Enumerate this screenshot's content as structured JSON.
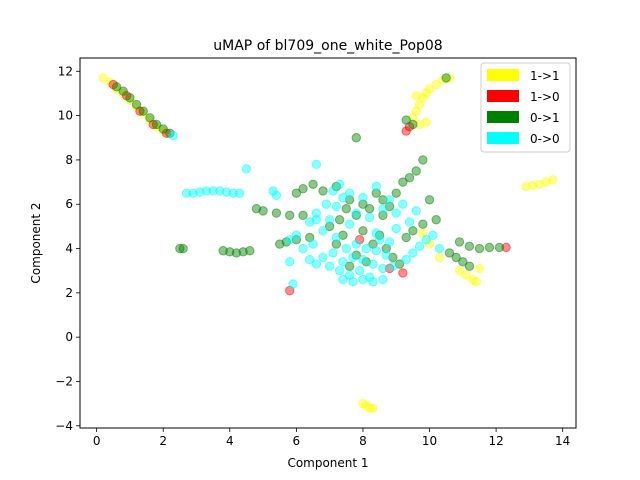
{
  "chart_data": {
    "type": "scatter",
    "title": "uMAP of bl709_one_white_Pop08",
    "xlabel": "Component 1",
    "ylabel": "Component 2",
    "xlim": [
      -0.5,
      14.4
    ],
    "ylim": [
      -4.1,
      12.6
    ],
    "xticks": [
      0,
      2,
      4,
      6,
      8,
      10,
      12,
      14
    ],
    "xtick_labels": [
      "0",
      "2",
      "4",
      "6",
      "8",
      "10",
      "12",
      "14"
    ],
    "yticks": [
      -4,
      -2,
      0,
      2,
      4,
      6,
      8,
      10,
      12
    ],
    "ytick_labels": [
      "−4",
      "−2",
      "0",
      "2",
      "4",
      "6",
      "8",
      "10",
      "12"
    ],
    "grid": false,
    "legend_position": "upper right",
    "series": [
      {
        "name": "1->1",
        "color": "#ffff00",
        "points": [
          [
            0.2,
            11.7
          ],
          [
            0.4,
            11.5
          ],
          [
            0.6,
            11.2
          ],
          [
            0.8,
            11.0
          ],
          [
            1.0,
            10.7
          ],
          [
            1.2,
            10.4
          ],
          [
            1.4,
            10.1
          ],
          [
            1.6,
            9.8
          ],
          [
            1.8,
            9.5
          ],
          [
            2.0,
            9.3
          ],
          [
            9.6,
            10.2
          ],
          [
            9.7,
            10.5
          ],
          [
            9.8,
            10.8
          ],
          [
            9.9,
            11.0
          ],
          [
            10.0,
            11.2
          ],
          [
            10.2,
            11.4
          ],
          [
            10.4,
            11.6
          ],
          [
            10.6,
            11.7
          ],
          [
            9.5,
            9.9
          ],
          [
            9.7,
            9.6
          ],
          [
            9.9,
            9.7
          ],
          [
            9.6,
            10.9
          ],
          [
            12.9,
            6.8
          ],
          [
            13.1,
            6.85
          ],
          [
            13.3,
            6.9
          ],
          [
            13.5,
            7.0
          ],
          [
            13.7,
            7.1
          ],
          [
            10.9,
            3.0
          ],
          [
            11.1,
            2.8
          ],
          [
            11.3,
            2.6
          ],
          [
            11.4,
            2.5
          ],
          [
            11.5,
            3.1
          ],
          [
            8.0,
            -3.0
          ],
          [
            8.1,
            -3.1
          ],
          [
            8.2,
            -3.2
          ],
          [
            8.3,
            -3.2
          ],
          [
            10.0,
            4.2
          ],
          [
            9.8,
            4.7
          ],
          [
            10.3,
            3.6
          ]
        ]
      },
      {
        "name": "1->0",
        "color": "#ff0000",
        "points": [
          [
            0.5,
            11.4
          ],
          [
            0.9,
            10.9
          ],
          [
            1.3,
            10.2
          ],
          [
            1.7,
            9.6
          ],
          [
            2.1,
            9.2
          ],
          [
            9.3,
            9.3
          ],
          [
            9.4,
            9.5
          ],
          [
            9.2,
            2.9
          ],
          [
            8.8,
            3.1
          ],
          [
            5.8,
            2.1
          ],
          [
            12.3,
            4.05
          ],
          [
            7.9,
            4.4
          ]
        ]
      },
      {
        "name": "0->1",
        "color": "#008000",
        "points": [
          [
            0.6,
            11.3
          ],
          [
            0.8,
            11.1
          ],
          [
            1.0,
            10.8
          ],
          [
            1.2,
            10.5
          ],
          [
            1.4,
            10.2
          ],
          [
            1.6,
            9.9
          ],
          [
            1.8,
            9.6
          ],
          [
            2.0,
            9.4
          ],
          [
            2.2,
            9.2
          ],
          [
            2.5,
            4.0
          ],
          [
            2.6,
            4.0
          ],
          [
            3.8,
            3.9
          ],
          [
            4.0,
            3.85
          ],
          [
            4.2,
            3.8
          ],
          [
            4.4,
            3.85
          ],
          [
            4.6,
            3.9
          ],
          [
            4.8,
            5.8
          ],
          [
            5.0,
            5.7
          ],
          [
            5.4,
            5.6
          ],
          [
            5.8,
            5.5
          ],
          [
            6.2,
            5.5
          ],
          [
            5.5,
            4.2
          ],
          [
            5.7,
            4.3
          ],
          [
            6.0,
            4.4
          ],
          [
            6.4,
            4.5
          ],
          [
            6.0,
            6.5
          ],
          [
            6.2,
            6.7
          ],
          [
            6.5,
            6.9
          ],
          [
            6.8,
            6.6
          ],
          [
            7.2,
            6.8
          ],
          [
            7.5,
            5.8
          ],
          [
            7.6,
            6.2
          ],
          [
            7.8,
            5.5
          ],
          [
            8.0,
            6.0
          ],
          [
            8.2,
            5.8
          ],
          [
            8.4,
            6.5
          ],
          [
            8.6,
            6.2
          ],
          [
            8.8,
            5.9
          ],
          [
            9.0,
            6.5
          ],
          [
            9.2,
            7.0
          ],
          [
            9.4,
            7.2
          ],
          [
            9.6,
            7.5
          ],
          [
            9.8,
            8.0
          ],
          [
            10.0,
            6.2
          ],
          [
            7.8,
            9.0
          ],
          [
            7.6,
            3.2
          ],
          [
            7.8,
            3.7
          ],
          [
            8.0,
            4.8
          ],
          [
            8.3,
            4.2
          ],
          [
            8.5,
            4.6
          ],
          [
            8.7,
            4.0
          ],
          [
            8.9,
            3.6
          ],
          [
            9.1,
            3.3
          ],
          [
            9.3,
            4.5
          ],
          [
            9.5,
            4.8
          ],
          [
            9.8,
            5.1
          ],
          [
            10.2,
            5.3
          ],
          [
            7.0,
            5.0
          ],
          [
            7.2,
            4.2
          ],
          [
            7.3,
            5.3
          ],
          [
            7.4,
            4.6
          ],
          [
            8.1,
            3.4
          ],
          [
            8.6,
            5.5
          ],
          [
            10.6,
            3.8
          ],
          [
            10.8,
            3.6
          ],
          [
            11.0,
            3.4
          ],
          [
            11.2,
            3.2
          ],
          [
            10.9,
            4.3
          ],
          [
            11.2,
            4.1
          ],
          [
            11.5,
            4.0
          ],
          [
            11.8,
            4.05
          ],
          [
            12.1,
            4.05
          ],
          [
            10.5,
            11.7
          ],
          [
            9.5,
            9.6
          ],
          [
            9.3,
            9.8
          ]
        ]
      },
      {
        "name": "0->0",
        "color": "#00ffff",
        "points": [
          [
            2.7,
            6.5
          ],
          [
            2.9,
            6.5
          ],
          [
            3.1,
            6.55
          ],
          [
            3.3,
            6.6
          ],
          [
            3.5,
            6.6
          ],
          [
            3.7,
            6.6
          ],
          [
            3.9,
            6.55
          ],
          [
            4.1,
            6.5
          ],
          [
            4.3,
            6.5
          ],
          [
            5.3,
            6.6
          ],
          [
            5.4,
            6.4
          ],
          [
            4.5,
            7.6
          ],
          [
            2.3,
            9.1
          ],
          [
            6.6,
            7.8
          ],
          [
            5.8,
            3.4
          ],
          [
            5.9,
            2.4
          ],
          [
            8.4,
            4.7
          ],
          [
            6.4,
            3.5
          ],
          [
            6.6,
            3.3
          ],
          [
            6.8,
            3.6
          ],
          [
            7.0,
            3.2
          ],
          [
            7.1,
            3.8
          ],
          [
            7.2,
            4.5
          ],
          [
            7.3,
            3.0
          ],
          [
            7.4,
            3.4
          ],
          [
            7.5,
            4.0
          ],
          [
            7.6,
            2.8
          ],
          [
            7.7,
            3.6
          ],
          [
            7.8,
            4.2
          ],
          [
            7.9,
            3.0
          ],
          [
            8.0,
            3.5
          ],
          [
            8.1,
            4.0
          ],
          [
            8.2,
            2.7
          ],
          [
            8.3,
            3.3
          ],
          [
            8.4,
            3.9
          ],
          [
            8.5,
            4.4
          ],
          [
            8.6,
            3.1
          ],
          [
            8.7,
            3.7
          ],
          [
            8.8,
            4.3
          ],
          [
            8.9,
            3.2
          ],
          [
            6.8,
            4.8
          ],
          [
            7.0,
            5.3
          ],
          [
            7.2,
            5.9
          ],
          [
            7.4,
            6.3
          ],
          [
            7.6,
            5.1
          ],
          [
            7.8,
            5.6
          ],
          [
            8.0,
            6.3
          ],
          [
            8.2,
            5.4
          ],
          [
            8.4,
            6.8
          ],
          [
            8.6,
            5.8
          ],
          [
            8.8,
            6.2
          ],
          [
            9.0,
            5.6
          ],
          [
            9.2,
            6.0
          ],
          [
            9.4,
            5.2
          ],
          [
            9.6,
            5.7
          ],
          [
            6.2,
            4.0
          ],
          [
            6.0,
            4.6
          ],
          [
            5.8,
            4.4
          ],
          [
            6.4,
            5.2
          ],
          [
            6.6,
            5.6
          ],
          [
            6.9,
            6.0
          ],
          [
            7.1,
            6.6
          ],
          [
            7.3,
            6.9
          ],
          [
            7.6,
            6.5
          ],
          [
            9.5,
            3.8
          ],
          [
            9.7,
            4.1
          ],
          [
            9.9,
            4.4
          ],
          [
            10.1,
            4.6
          ],
          [
            10.3,
            4.0
          ],
          [
            7.4,
            2.6
          ],
          [
            7.7,
            2.5
          ],
          [
            8.0,
            2.6
          ],
          [
            8.3,
            2.5
          ],
          [
            8.6,
            2.6
          ],
          [
            6.6,
            5.3
          ],
          [
            6.5,
            4.2
          ],
          [
            9.3,
            3.5
          ],
          [
            9.0,
            4.9
          ]
        ]
      }
    ]
  }
}
